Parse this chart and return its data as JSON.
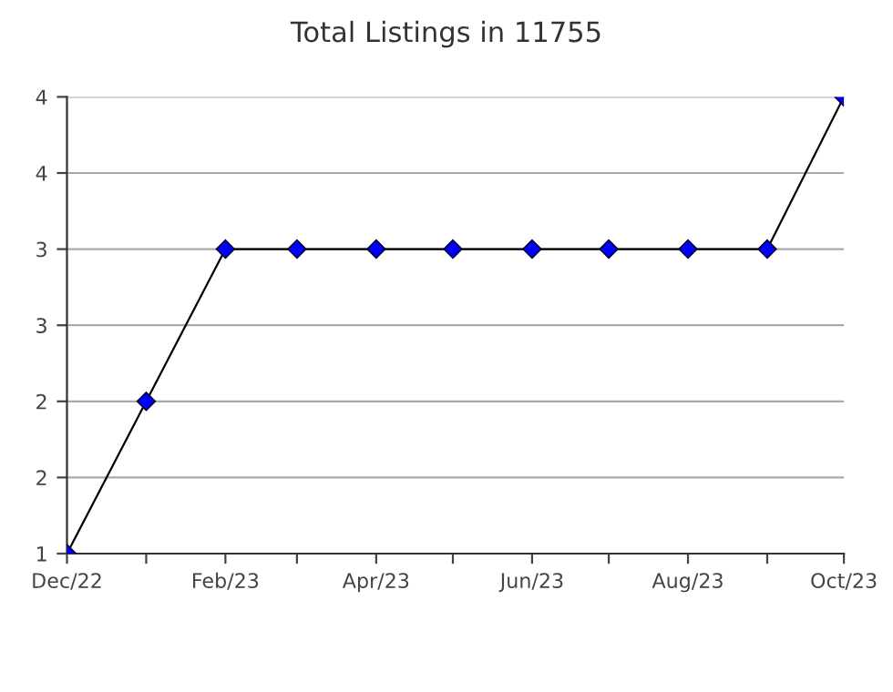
{
  "chart_data": {
    "type": "line",
    "title": "Total Listings in 11755",
    "x": [
      "2022-12",
      "2023-01",
      "2023-02",
      "2023-03",
      "2023-04",
      "2023-05",
      "2023-06",
      "2023-07",
      "2023-08",
      "2023-09",
      "2023-10"
    ],
    "series": [
      {
        "color": "#0000ff",
        "values": [
          1,
          2,
          3,
          3,
          3,
          3,
          3,
          3,
          3,
          3,
          4
        ]
      }
    ],
    "xlim": [
      "2022-12",
      "2023-10"
    ],
    "xticks": [
      {
        "value": "2022-12",
        "label": "Dec/22"
      },
      {
        "value": "2023-01",
        "label": null
      },
      {
        "value": "2023-02",
        "label": "Feb/23"
      },
      {
        "value": "2023-03",
        "label": null
      },
      {
        "value": "2023-04",
        "label": "Apr/23"
      },
      {
        "value": "2023-05",
        "label": null
      },
      {
        "value": "2023-06",
        "label": "Jun/23"
      },
      {
        "value": "2023-07",
        "label": null
      },
      {
        "value": "2023-08",
        "label": "Aug/23"
      },
      {
        "value": "2023-09",
        "label": null
      },
      {
        "value": "2023-10",
        "label": "Oct/23"
      }
    ],
    "ylim": [
      1,
      4
    ],
    "yticks": [
      1,
      {
        "value": 1.5,
        "label": "2"
      },
      2,
      {
        "value": 2.5,
        "label": "3"
      },
      3,
      {
        "value": 3.5,
        "label": "4"
      },
      4
    ],
    "grid": "y",
    "marker": "diamond",
    "line_style": "solid",
    "legend": false
  }
}
